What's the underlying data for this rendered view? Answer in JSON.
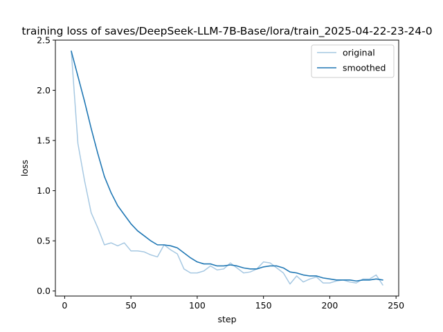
{
  "chart_data": {
    "type": "line",
    "title": "training loss of saves/DeepSeek-LLM-7B-Base/lora/train_2025-04-22-23-24-0",
    "xlabel": "step",
    "ylabel": "loss",
    "xlim": [
      -7,
      252
    ],
    "ylim": [
      -0.05,
      2.5
    ],
    "xticks": [
      0,
      50,
      100,
      150,
      200,
      250
    ],
    "yticks": [
      0.0,
      0.5,
      1.0,
      1.5,
      2.0,
      2.5
    ],
    "xtick_labels": [
      "0",
      "50",
      "100",
      "150",
      "200",
      "250"
    ],
    "ytick_labels": [
      "0.0",
      "0.5",
      "1.0",
      "1.5",
      "2.0",
      "2.5"
    ],
    "grid": false,
    "legend_position": "top-right",
    "x": [
      5,
      10,
      15,
      20,
      25,
      30,
      35,
      40,
      45,
      50,
      55,
      60,
      65,
      70,
      75,
      80,
      85,
      90,
      95,
      100,
      105,
      110,
      115,
      120,
      125,
      130,
      135,
      140,
      145,
      150,
      155,
      160,
      165,
      170,
      175,
      180,
      185,
      190,
      195,
      200,
      205,
      210,
      215,
      220,
      225,
      230,
      235,
      240
    ],
    "series": [
      {
        "name": "original",
        "color": "#a6c8e2",
        "values": [
          2.39,
          1.47,
          1.1,
          0.78,
          0.63,
          0.46,
          0.48,
          0.45,
          0.48,
          0.4,
          0.4,
          0.39,
          0.36,
          0.34,
          0.46,
          0.41,
          0.37,
          0.22,
          0.18,
          0.18,
          0.2,
          0.25,
          0.21,
          0.22,
          0.28,
          0.23,
          0.18,
          0.19,
          0.22,
          0.29,
          0.28,
          0.23,
          0.18,
          0.07,
          0.15,
          0.09,
          0.12,
          0.14,
          0.08,
          0.08,
          0.1,
          0.11,
          0.09,
          0.08,
          0.12,
          0.12,
          0.16,
          0.06
        ]
      },
      {
        "name": "smoothed",
        "color": "#1f77b4",
        "values": [
          2.39,
          2.14,
          1.89,
          1.62,
          1.37,
          1.14,
          0.98,
          0.85,
          0.76,
          0.67,
          0.6,
          0.55,
          0.5,
          0.46,
          0.46,
          0.45,
          0.43,
          0.38,
          0.33,
          0.29,
          0.27,
          0.27,
          0.25,
          0.25,
          0.26,
          0.25,
          0.23,
          0.22,
          0.22,
          0.24,
          0.25,
          0.25,
          0.23,
          0.19,
          0.18,
          0.16,
          0.15,
          0.15,
          0.13,
          0.12,
          0.11,
          0.11,
          0.11,
          0.1,
          0.11,
          0.11,
          0.12,
          0.11
        ]
      }
    ]
  }
}
